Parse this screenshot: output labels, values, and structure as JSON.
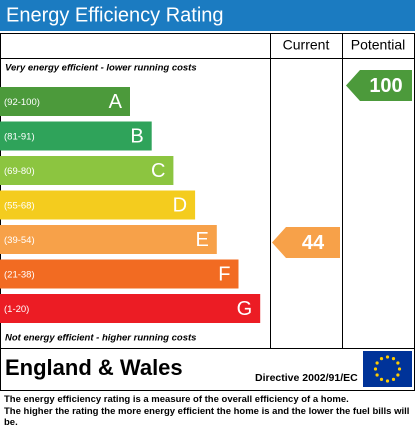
{
  "header": {
    "title": "Energy Efficiency Rating"
  },
  "columns": {
    "current": "Current",
    "potential": "Potential"
  },
  "top_note": "Very energy efficient - lower running costs",
  "bottom_note": "Not energy efficient - higher running costs",
  "bands": [
    {
      "range": "(92-100)",
      "letter": "A",
      "color": "#4c9a3b"
    },
    {
      "range": "(81-91)",
      "letter": "B",
      "color": "#2fa35a"
    },
    {
      "range": "(69-80)",
      "letter": "C",
      "color": "#8cc540"
    },
    {
      "range": "(55-68)",
      "letter": "D",
      "color": "#f4cc1e"
    },
    {
      "range": "(39-54)",
      "letter": "E",
      "color": "#f7a149"
    },
    {
      "range": "(21-38)",
      "letter": "F",
      "color": "#f26b22"
    },
    {
      "range": "(1-20)",
      "letter": "G",
      "color": "#ec1c24"
    }
  ],
  "current": {
    "value": 44,
    "band": 4,
    "color": "#f7a149"
  },
  "potential": {
    "value": 100,
    "band": 0,
    "color": "#4c9a3b"
  },
  "region": "England & Wales",
  "directive": "Directive 2002/91/EC",
  "footer": [
    "The energy efficiency rating is a measure of the overall efficiency of a home.",
    "The higher the rating the more energy efficient the home is and the lower the fuel bills will be."
  ]
}
